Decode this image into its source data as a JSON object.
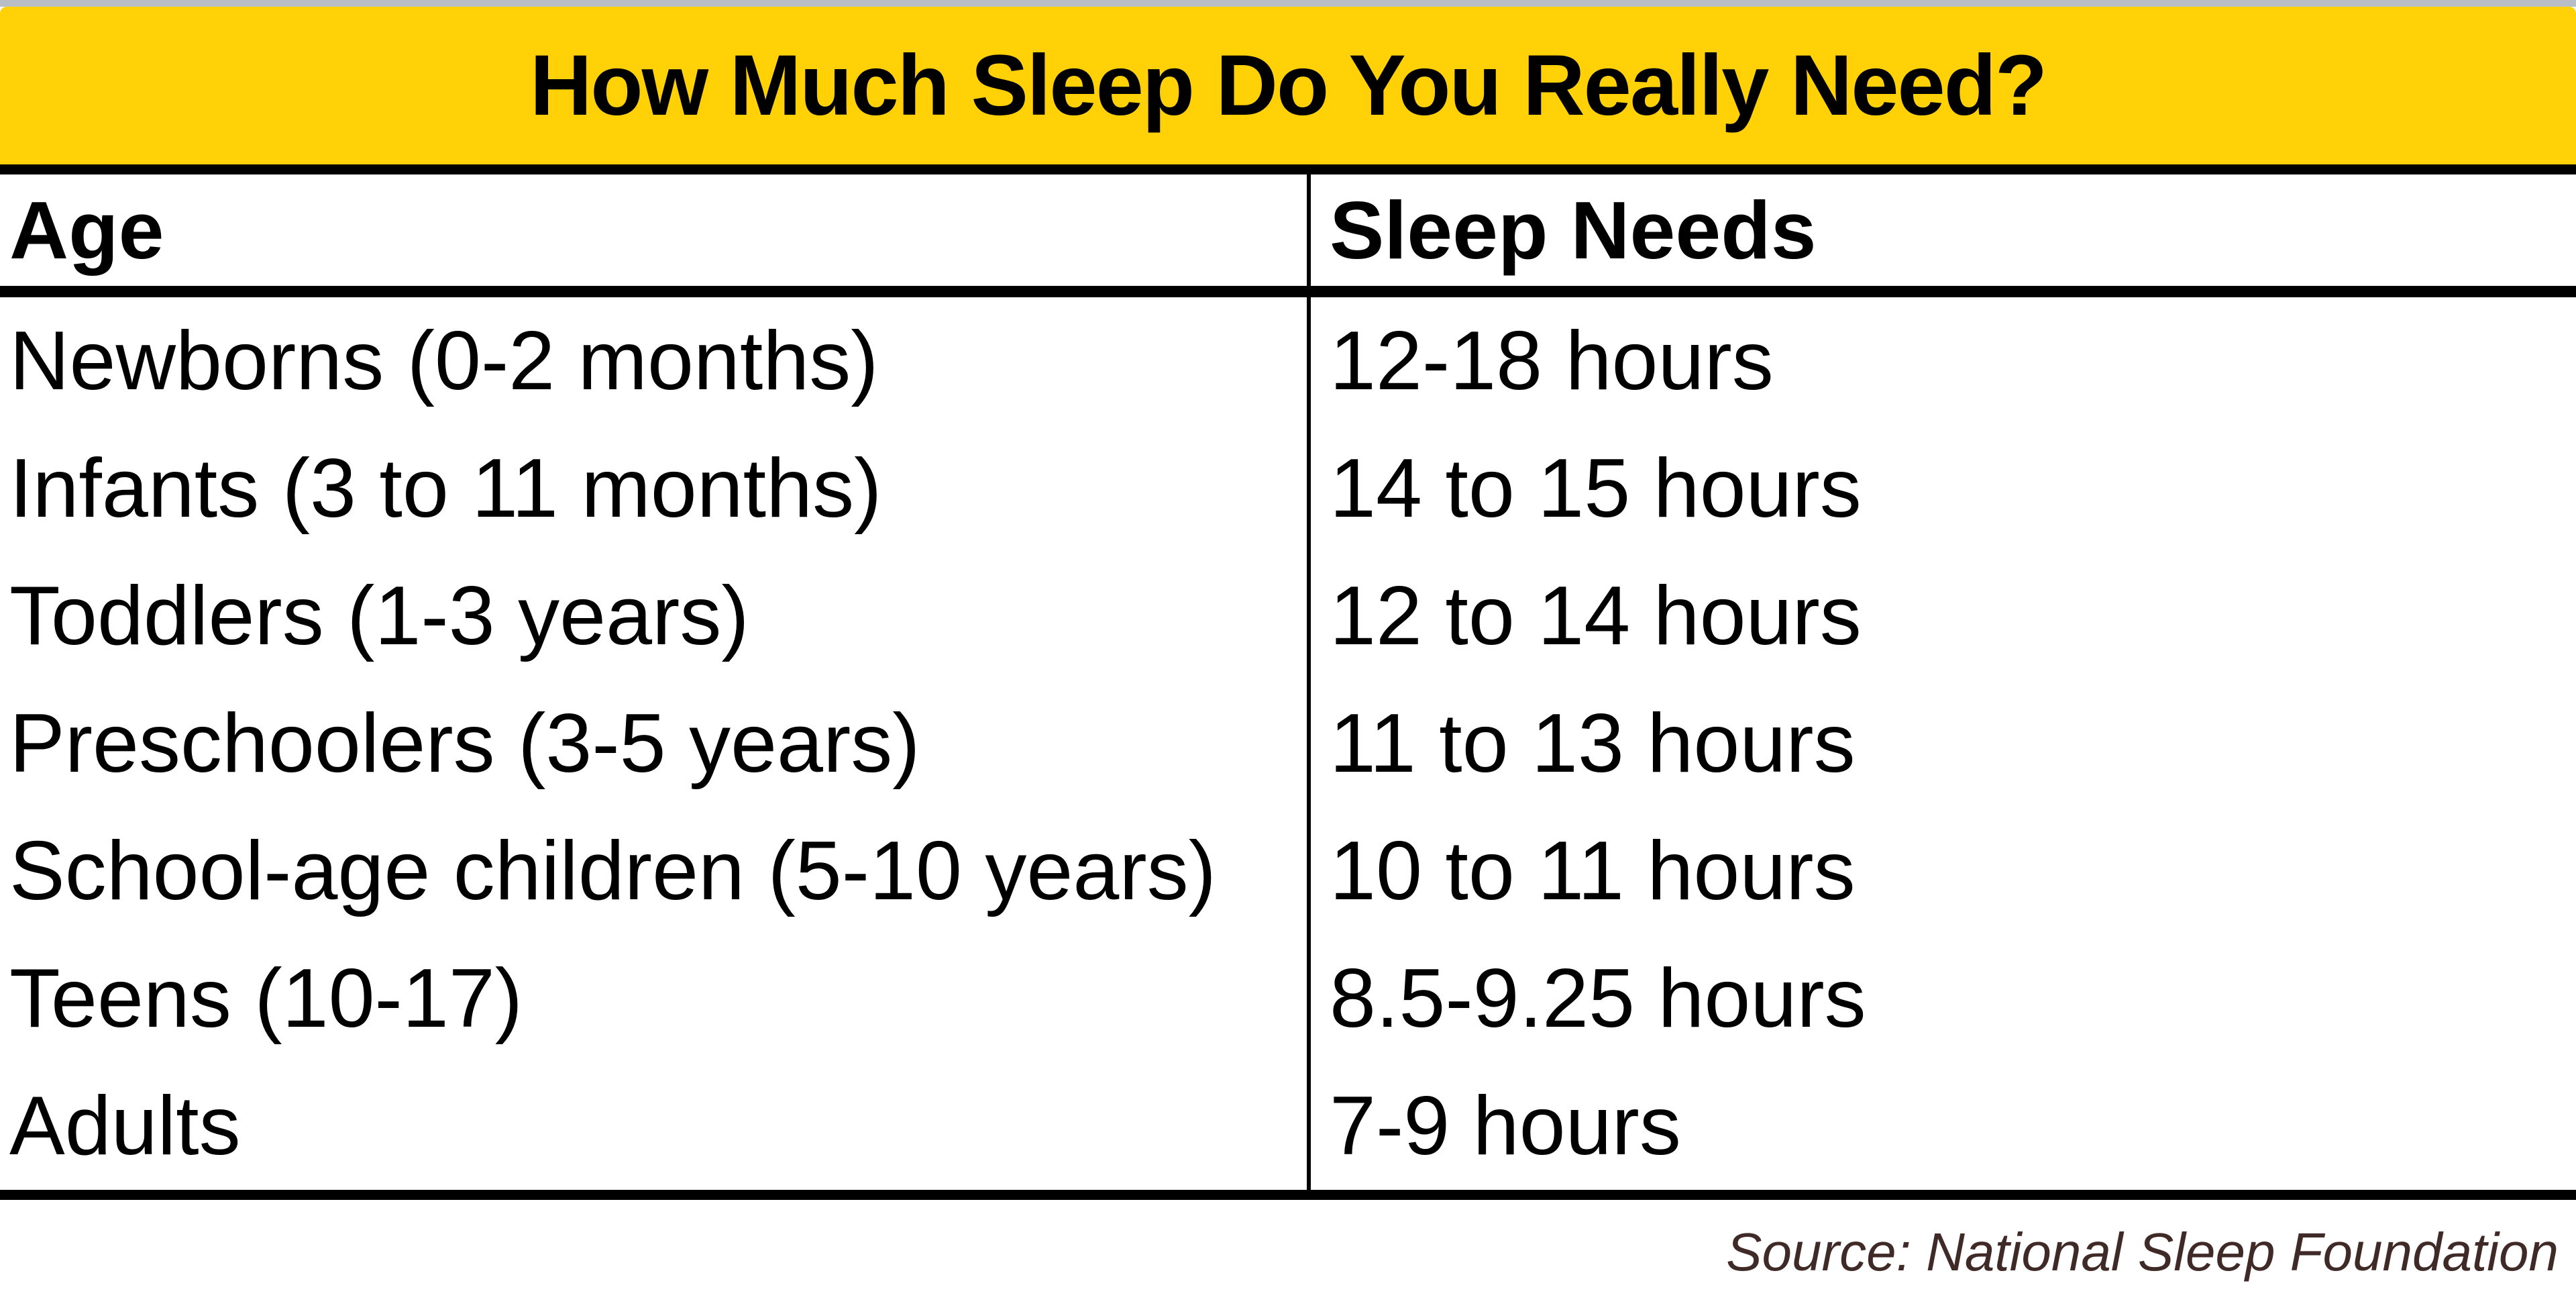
{
  "page": {
    "title": "How Much Sleep Do You Really Need?",
    "source": "Source: National Sleep Foundation"
  },
  "table": {
    "columns": [
      "Age",
      "Sleep Needs"
    ]
  },
  "colors": {
    "banner_yellow": "#ffd106",
    "top_strip_gray": "#b9bdc6",
    "text_black": "#000000",
    "source_text": "#402a28"
  },
  "chart_data": {
    "type": "table",
    "title": "How Much Sleep Do You Really Need?",
    "columns": [
      "Age",
      "Sleep Needs"
    ],
    "rows": [
      [
        "Newborns (0-2 months)",
        "12-18 hours"
      ],
      [
        "Infants (3 to 11 months)",
        "14 to 15 hours"
      ],
      [
        "Toddlers (1-3 years)",
        "12 to 14 hours"
      ],
      [
        "Preschoolers (3-5 years)",
        "11 to 13 hours"
      ],
      [
        "School-age children (5-10 years)",
        "10 to 11 hours"
      ],
      [
        "Teens (10-17)",
        "8.5-9.25 hours"
      ],
      [
        "Adults",
        "7-9 hours"
      ]
    ],
    "source": "Source: National Sleep Foundation"
  }
}
